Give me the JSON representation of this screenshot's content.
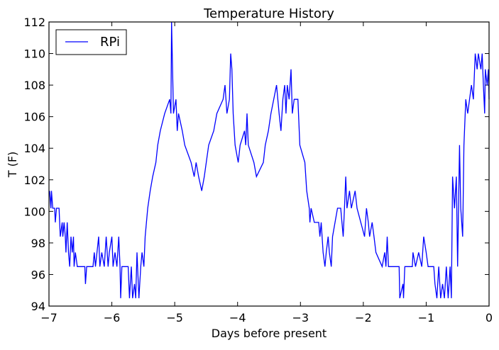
{
  "chart_data": {
    "type": "line",
    "title": "Temperature History",
    "xlabel": "Days before present",
    "ylabel": "T (F)",
    "xlim": [
      -7,
      0
    ],
    "ylim": [
      94,
      112
    ],
    "xticks": [
      -7,
      -6,
      -5,
      -4,
      -3,
      -2,
      -1,
      0
    ],
    "xtick_labels": [
      "−7",
      "−6",
      "−5",
      "−4",
      "−3",
      "−2",
      "−1",
      "0"
    ],
    "yticks": [
      94,
      96,
      98,
      100,
      102,
      104,
      106,
      108,
      110,
      112
    ],
    "ytick_labels": [
      "94",
      "96",
      "98",
      "100",
      "102",
      "104",
      "106",
      "108",
      "110",
      "112"
    ],
    "grid": false,
    "legend_position": "top-left",
    "series": [
      {
        "name": "RPi",
        "color": "#0000ff",
        "x": [
          -6.99,
          -6.97,
          -6.96,
          -6.94,
          -6.91,
          -6.9,
          -6.88,
          -6.84,
          -6.82,
          -6.79,
          -6.78,
          -6.76,
          -6.74,
          -6.73,
          -6.71,
          -6.69,
          -6.67,
          -6.65,
          -6.63,
          -6.61,
          -6.6,
          -6.58,
          -6.55,
          -6.54,
          -6.43,
          -6.42,
          -6.4,
          -6.3,
          -6.28,
          -6.26,
          -6.21,
          -6.19,
          -6.16,
          -6.12,
          -6.09,
          -6.06,
          -6.04,
          -6.0,
          -5.98,
          -5.95,
          -5.92,
          -5.89,
          -5.87,
          -5.86,
          -5.84,
          -5.74,
          -5.72,
          -5.69,
          -5.67,
          -5.64,
          -5.62,
          -5.6,
          -5.57,
          -5.54,
          -5.52,
          -5.49,
          -5.47,
          -5.43,
          -5.39,
          -5.35,
          -5.3,
          -5.27,
          -5.23,
          -5.16,
          -5.08,
          -5.06,
          -5.05,
          -5.02,
          -4.98,
          -4.96,
          -4.94,
          -4.88,
          -4.84,
          -4.74,
          -4.69,
          -4.66,
          -4.62,
          -4.57,
          -4.53,
          -4.46,
          -4.38,
          -4.33,
          -4.23,
          -4.2,
          -4.17,
          -4.13,
          -4.11,
          -4.09,
          -4.07,
          -4.04,
          -3.99,
          -3.96,
          -3.89,
          -3.87,
          -3.85,
          -3.83,
          -3.74,
          -3.7,
          -3.59,
          -3.56,
          -3.51,
          -3.47,
          -3.38,
          -3.36,
          -3.34,
          -3.31,
          -3.28,
          -3.25,
          -3.23,
          -3.21,
          -3.18,
          -3.15,
          -3.13,
          -3.1,
          -3.04,
          -3.01,
          -2.93,
          -2.9,
          -2.86,
          -2.85,
          -2.83,
          -2.78,
          -2.71,
          -2.69,
          -2.67,
          -2.64,
          -2.61,
          -2.59,
          -2.56,
          -2.54,
          -2.51,
          -2.49,
          -2.45,
          -2.41,
          -2.36,
          -2.32,
          -2.3,
          -2.28,
          -2.26,
          -2.22,
          -2.19,
          -2.13,
          -2.1,
          -2.04,
          -1.98,
          -1.95,
          -1.92,
          -1.9,
          -1.86,
          -1.83,
          -1.8,
          -1.7,
          -1.66,
          -1.64,
          -1.62,
          -1.6,
          -1.43,
          -1.42,
          -1.37,
          -1.36,
          -1.34,
          -1.22,
          -1.21,
          -1.17,
          -1.12,
          -1.07,
          -1.04,
          -1.0,
          -0.97,
          -0.88,
          -0.86,
          -0.83,
          -0.8,
          -0.77,
          -0.74,
          -0.71,
          -0.68,
          -0.65,
          -0.62,
          -0.6,
          -0.58,
          -0.55,
          -0.52,
          -0.5,
          -0.47,
          -0.45,
          -0.42,
          -0.4,
          -0.37,
          -0.34,
          -0.31,
          -0.28,
          -0.25,
          -0.22,
          -0.19,
          -0.17,
          -0.13,
          -0.11,
          -0.09,
          -0.07,
          -0.06,
          -0.03,
          -0.01,
          0.0
        ],
        "y": [
          101.3,
          100.2,
          101.3,
          100.2,
          100.2,
          99.3,
          100.2,
          100.2,
          98.4,
          99.3,
          98.4,
          99.3,
          98.4,
          97.4,
          99.3,
          97.4,
          96.5,
          98.4,
          97.4,
          98.4,
          96.5,
          97.4,
          96.5,
          96.5,
          96.5,
          95.4,
          96.5,
          96.5,
          97.4,
          96.5,
          98.4,
          96.5,
          97.4,
          96.5,
          98.4,
          96.5,
          97.4,
          98.4,
          96.5,
          97.4,
          96.5,
          98.4,
          96.5,
          94.5,
          96.5,
          96.5,
          94.5,
          96.5,
          94.5,
          95.4,
          94.5,
          97.4,
          94.5,
          96.5,
          97.4,
          96.5,
          98.4,
          100.2,
          101.3,
          102.2,
          103.1,
          104.2,
          105.1,
          106.2,
          107.1,
          106.2,
          112,
          106.2,
          107.1,
          105.1,
          106.2,
          105.1,
          104.2,
          103.1,
          102.2,
          103.1,
          102.2,
          101.3,
          102.2,
          104.2,
          105.1,
          106.2,
          107.1,
          108,
          106.2,
          107.1,
          110,
          109,
          106.2,
          104.2,
          103.1,
          104.2,
          105.1,
          104.2,
          106.2,
          104.2,
          103.1,
          102.2,
          103.1,
          104.2,
          105.1,
          106.2,
          108,
          107.1,
          106.2,
          105.1,
          107.1,
          108,
          106.2,
          108,
          107.1,
          109,
          106.2,
          107.1,
          107.1,
          104.2,
          103.1,
          101.3,
          100.2,
          99.3,
          100.2,
          99.3,
          99.3,
          98.4,
          99.3,
          97.4,
          96.5,
          97.4,
          98.4,
          97.4,
          96.5,
          98.4,
          99.3,
          100.2,
          100.2,
          98.4,
          100.2,
          102.2,
          100.2,
          101.3,
          100.2,
          101.3,
          100.2,
          99.3,
          98.4,
          100.2,
          99.3,
          98.4,
          99.3,
          98.4,
          97.4,
          96.5,
          97.4,
          96.5,
          98.4,
          96.5,
          96.5,
          94.5,
          95.4,
          94.5,
          96.5,
          96.5,
          97.4,
          96.5,
          97.4,
          96.5,
          98.4,
          97.4,
          96.5,
          96.5,
          95.4,
          94.5,
          96.5,
          94.5,
          95.4,
          94.5,
          96.5,
          94.5,
          96.5,
          94.5,
          102.2,
          100.2,
          102.2,
          96.5,
          104.2,
          100.2,
          98.4,
          104.2,
          107.1,
          106.2,
          107.1,
          108,
          107.1,
          110,
          109,
          110,
          109,
          110,
          108,
          106.2,
          109,
          108,
          109,
          107.1
        ]
      }
    ]
  }
}
